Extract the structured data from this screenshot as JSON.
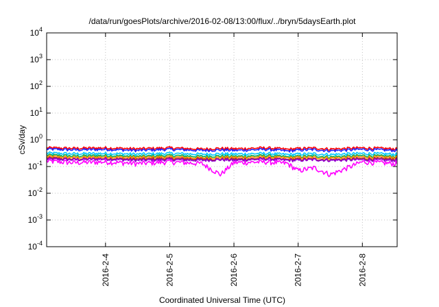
{
  "chart_data": {
    "type": "line",
    "title": "/data/run/goesPlots/archive/2016-02-08/13:00/flux/../bryn/5daysEarth.plot",
    "xlabel": "Coordinated Universal Time (UTC)",
    "ylabel": "cSv/day",
    "yscale": "log",
    "ylim": [
      0.0001,
      10000
    ],
    "xlim": [
      "2016-02-03 02:00",
      "2016-02-08 13:00"
    ],
    "grid": true,
    "legend": "none",
    "yticks": [
      {
        "base": "10",
        "exp": "4"
      },
      {
        "base": "10",
        "exp": "3"
      },
      {
        "base": "10",
        "exp": "2"
      },
      {
        "base": "10",
        "exp": "1"
      },
      {
        "base": "10",
        "exp": "0"
      },
      {
        "base": "10",
        "exp": "-1"
      },
      {
        "base": "10",
        "exp": "-2"
      },
      {
        "base": "10",
        "exp": "-3"
      },
      {
        "base": "10",
        "exp": "-4"
      }
    ],
    "xticks": [
      "2016-2-4",
      "2016-2-5",
      "2016-2-6",
      "2016-2-7",
      "2016-2-8"
    ],
    "x_sample_times": [
      "2016-02-03 02:00",
      "2016-02-03 12:00",
      "2016-02-04 00:00",
      "2016-02-04 12:00",
      "2016-02-05 00:00",
      "2016-02-05 12:00",
      "2016-02-05 19:00",
      "2016-02-06 00:00",
      "2016-02-06 12:00",
      "2016-02-06 20:00",
      "2016-02-07 00:00",
      "2016-02-07 06:00",
      "2016-02-07 12:00",
      "2016-02-08 00:00",
      "2016-02-08 12:00",
      "2016-02-08 13:00"
    ],
    "series": [
      {
        "color": "#ff0000",
        "values": [
          0.5,
          0.48,
          0.5,
          0.46,
          0.5,
          0.45,
          0.48,
          0.46,
          0.5,
          0.44,
          0.47,
          0.49,
          0.45,
          0.5,
          0.46,
          0.45
        ]
      },
      {
        "color": "#2020ff",
        "values": [
          0.45,
          0.42,
          0.44,
          0.4,
          0.44,
          0.4,
          0.42,
          0.4,
          0.44,
          0.38,
          0.41,
          0.43,
          0.39,
          0.44,
          0.4,
          0.4
        ]
      },
      {
        "color": "#00c8ff",
        "values": [
          0.32,
          0.3,
          0.31,
          0.29,
          0.31,
          0.29,
          0.3,
          0.29,
          0.31,
          0.28,
          0.29,
          0.3,
          0.28,
          0.31,
          0.29,
          0.29
        ]
      },
      {
        "color": "#00b060",
        "values": [
          0.27,
          0.25,
          0.26,
          0.24,
          0.26,
          0.24,
          0.25,
          0.24,
          0.26,
          0.23,
          0.24,
          0.25,
          0.23,
          0.26,
          0.24,
          0.24
        ]
      },
      {
        "color": "#ff8c00",
        "values": [
          0.24,
          0.22,
          0.23,
          0.22,
          0.23,
          0.21,
          0.22,
          0.22,
          0.23,
          0.21,
          0.22,
          0.22,
          0.21,
          0.23,
          0.22,
          0.22
        ]
      },
      {
        "color": "#a52a2a",
        "values": [
          0.21,
          0.19,
          0.2,
          0.19,
          0.2,
          0.19,
          0.19,
          0.19,
          0.2,
          0.18,
          0.19,
          0.19,
          0.18,
          0.2,
          0.19,
          0.19
        ]
      },
      {
        "color": "#9400d3",
        "values": [
          0.19,
          0.18,
          0.19,
          0.17,
          0.18,
          0.17,
          0.18,
          0.17,
          0.19,
          0.17,
          0.17,
          0.18,
          0.17,
          0.18,
          0.17,
          0.17
        ]
      },
      {
        "color": "#ff00ff",
        "values": [
          0.16,
          0.14,
          0.15,
          0.13,
          0.15,
          0.13,
          0.05,
          0.14,
          0.15,
          0.13,
          0.07,
          0.09,
          0.05,
          0.15,
          0.13,
          0.13
        ]
      }
    ]
  }
}
